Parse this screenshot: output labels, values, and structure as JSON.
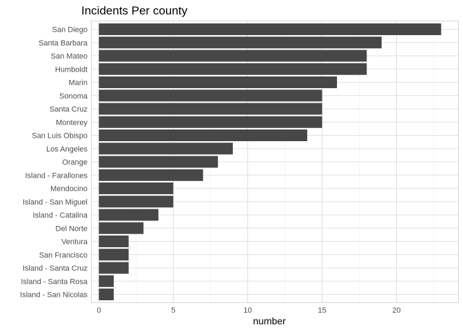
{
  "chart_data": {
    "type": "bar",
    "orientation": "horizontal",
    "title": "Incidents Per county",
    "xlabel": "number",
    "ylabel": "",
    "categories": [
      "San Diego",
      "Santa Barbara",
      "San Mateo",
      "Humboldt",
      "Marin",
      "Sonoma",
      "Santa Cruz",
      "Monterey",
      "San Luis Obispo",
      "Los Angeles",
      "Orange",
      "Island - Farallones",
      "Mendocino",
      "Island - San Miguel",
      "Island - Catalina",
      "Del Norte",
      "Ventura",
      "San Francisco",
      "Island - Santa Cruz",
      "Island - Santa Rosa",
      "Island - San Nicolas"
    ],
    "values": [
      23,
      19,
      18,
      18,
      16,
      15,
      15,
      15,
      14,
      9,
      8,
      7,
      5,
      5,
      4,
      3,
      2,
      2,
      2,
      1,
      1
    ],
    "xlim": [
      0,
      23
    ],
    "xticks": [
      0,
      5,
      10,
      15,
      20
    ],
    "grid": true,
    "bar_color": "#474747",
    "grid_major_color": "#e0e0e0",
    "grid_minor_color": "#f0f0f0",
    "panel_border_color": "#d6d6d6"
  }
}
